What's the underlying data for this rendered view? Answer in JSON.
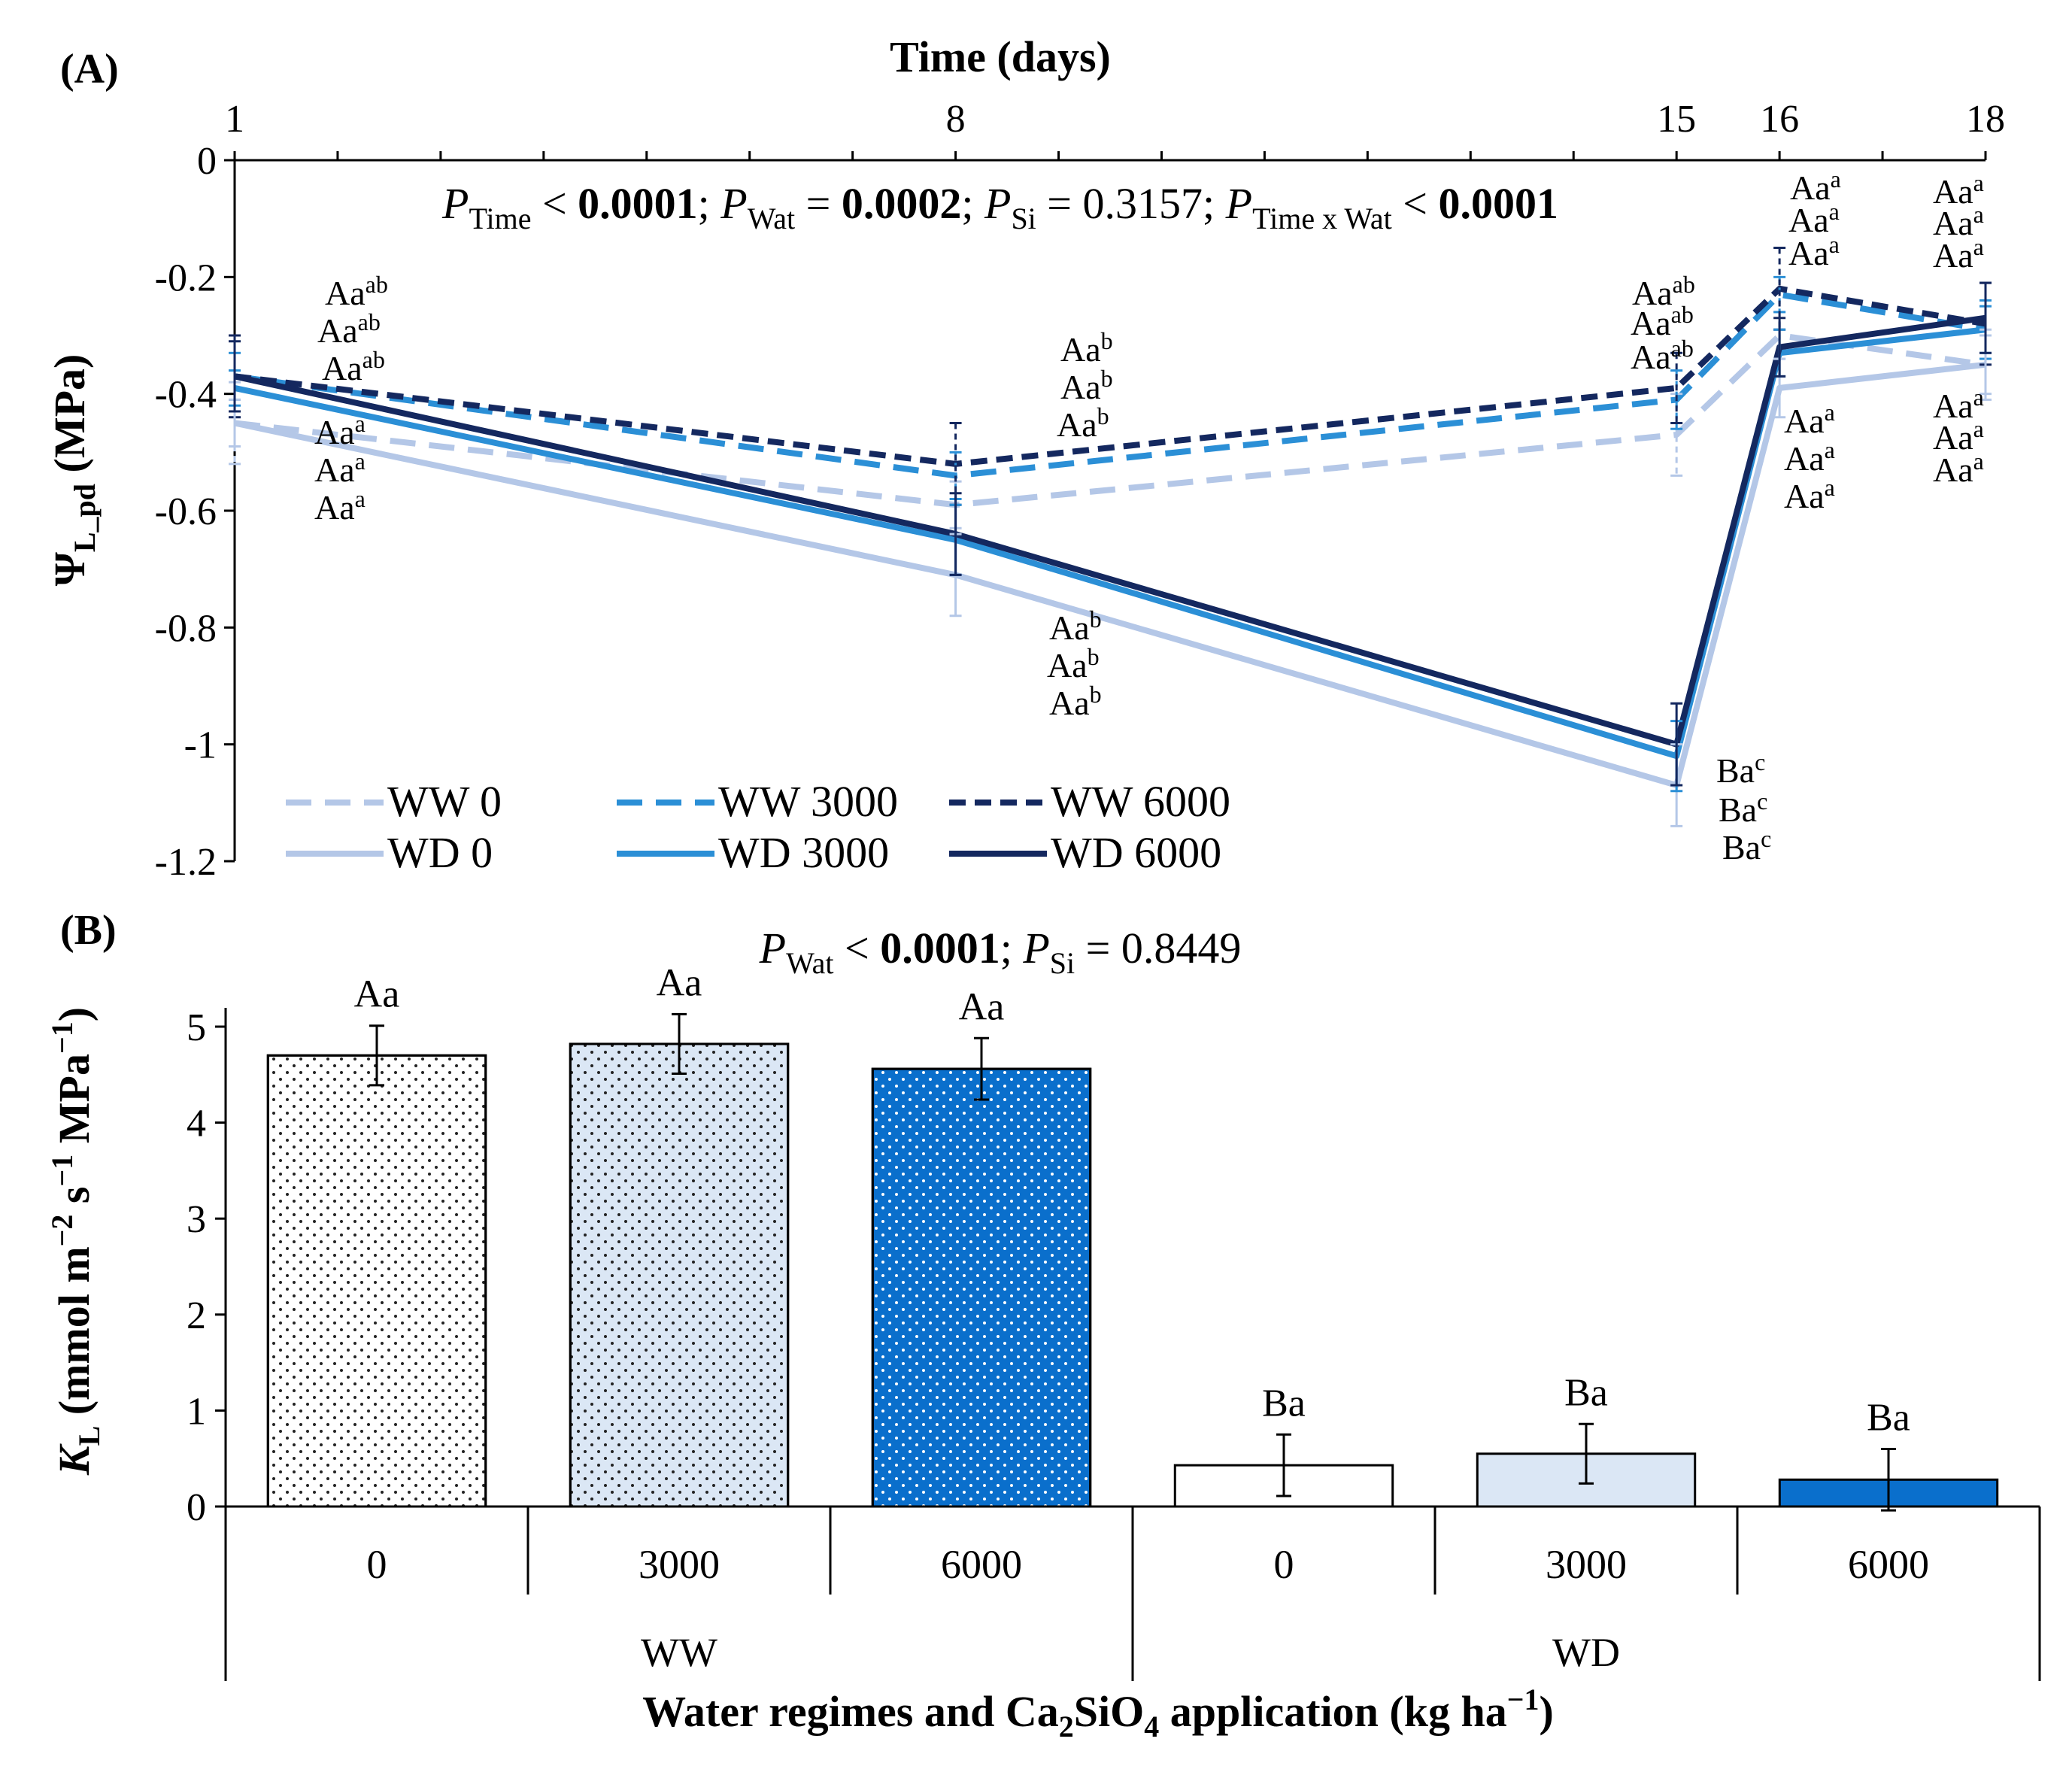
{
  "colors": {
    "ww0": "#b4c7e7",
    "ww3000": "#2b8fd6",
    "ww6000": "#14285f",
    "wd0": "#b4c7e7",
    "wd3000": "#2b8fd6",
    "wd6000": "#14285f",
    "bar_ww0": "#ffffff",
    "bar_ww3000": "#dbe7f5",
    "bar_ww6000": "#0a6fcc",
    "bar_wd0": "#ffffff",
    "bar_wd3000": "#dbe7f5",
    "bar_wd6000": "#0a6fcc"
  },
  "chart_data": [
    {
      "panel": "(A)",
      "type": "line",
      "xlabel": "Time (days)",
      "ylabel": {
        "sym": "Ψ",
        "sub": "L_pd",
        "unit": " (MPa)"
      },
      "x_ticks": [
        "1",
        "8",
        "15",
        "16",
        "18"
      ],
      "x": [
        1,
        8,
        15,
        16,
        18
      ],
      "xlim": [
        1,
        18
      ],
      "ylim": [
        -1.2,
        0
      ],
      "y_ticks": [
        "0",
        "-0.2",
        "-0.4",
        "-0.6",
        "-0.8",
        "-1",
        "-1.2"
      ],
      "stats": {
        "p1": "P",
        "p1sub": "Time",
        "p1rel": " < ",
        "p1val": "0.0001",
        "sep1": "; ",
        "p2": "P",
        "p2sub": "Wat",
        "p2rel": " = ",
        "p2val": "0.0002",
        "sep2": "; ",
        "p3": "P",
        "p3sub": "Si",
        "p3rel": " = 0.3157; ",
        "p4": "P",
        "p4sub": "Time x Wat",
        "p4rel": " < ",
        "p4val": "0.0001"
      },
      "series": [
        {
          "name": "WW 0",
          "dash": true,
          "values": [
            -0.45,
            -0.59,
            -0.47,
            -0.3,
            -0.35
          ],
          "errors": [
            0.07,
            0.04,
            0.07,
            0.04,
            0.06
          ]
        },
        {
          "name": "WW 3000",
          "dash": true,
          "values": [
            -0.37,
            -0.54,
            -0.41,
            -0.23,
            -0.29
          ],
          "errors": [
            0.04,
            0.04,
            0.05,
            0.03,
            0.05
          ]
        },
        {
          "name": "WW 6000",
          "dash": true,
          "values": [
            -0.37,
            -0.52,
            -0.39,
            -0.22,
            -0.28
          ],
          "errors": [
            0.07,
            0.07,
            0.06,
            0.07,
            0.07
          ]
        },
        {
          "name": "WD 0",
          "dash": false,
          "values": [
            -0.45,
            -0.71,
            -1.07,
            -0.39,
            -0.35
          ],
          "errors": [
            0.04,
            0.07,
            0.07,
            0.05,
            0.05
          ]
        },
        {
          "name": "WD 3000",
          "dash": false,
          "values": [
            -0.39,
            -0.65,
            -1.02,
            -0.33,
            -0.29
          ],
          "errors": [
            0.03,
            0.06,
            0.06,
            0.04,
            0.04
          ]
        },
        {
          "name": "WD 6000",
          "dash": false,
          "values": [
            -0.37,
            -0.64,
            -1.0,
            -0.32,
            -0.27
          ],
          "errors": [
            0.06,
            0.07,
            0.07,
            0.05,
            0.06
          ]
        }
      ],
      "annotations": {
        "d1_ww": [
          "Aa",
          "ab",
          "Aa",
          "ab",
          "Aa",
          "ab"
        ],
        "d1_wd": [
          "Aa",
          "a",
          "Aa",
          "a",
          "Aa",
          "a"
        ],
        "d8_ww": [
          "Aa",
          "b",
          "Aa",
          "b",
          "Aa",
          "b"
        ],
        "d8_wd": [
          "Aa",
          "b",
          "Aa",
          "b",
          "Aa",
          "b"
        ],
        "d15_ww": [
          "Aa",
          "ab",
          "Aa",
          "ab",
          "Aa",
          "ab"
        ],
        "d15_wd": [
          "Ba",
          "c",
          "Ba",
          "c",
          "Ba",
          "c"
        ],
        "d16_ww": [
          "Aa",
          "a",
          "Aa",
          "a",
          "Aa",
          "a"
        ],
        "d16_wd": [
          "Aa",
          "a",
          "Aa",
          "a",
          "Aa",
          "a"
        ],
        "d18_ww": [
          "Aa",
          "a",
          "Aa",
          "a",
          "Aa",
          "a"
        ],
        "d18_wd": [
          "Aa",
          "a",
          "Aa",
          "a",
          "Aa",
          "a"
        ]
      }
    },
    {
      "panel": "(B)",
      "type": "bar",
      "ylabel": {
        "sym": "K",
        "sub": "L",
        "unit": " (mmol m",
        "e1": "−2",
        "u2": " s",
        "e2": "−1",
        "u3": " MPa",
        "e3": "−1",
        "u4": ")"
      },
      "xlabel": {
        "a": "Water regimes and Ca",
        "s1": "2",
        "b": "SiO",
        "s2": "4",
        "c": " application (kg ha",
        "e": "−1",
        "d": ")"
      },
      "stats": {
        "p1": "P",
        "p1sub": "Wat",
        "p1rel": " < ",
        "p1val": "0.0001",
        "sep": "; ",
        "p2": "P",
        "p2sub": "Si",
        "p2rel": " = 0.8449"
      },
      "ylim": [
        0,
        5
      ],
      "y_ticks": [
        "0",
        "1",
        "2",
        "3",
        "4",
        "5"
      ],
      "categories": [
        "0",
        "3000",
        "6000",
        "0",
        "3000",
        "6000"
      ],
      "groups": [
        "WW",
        "WD"
      ],
      "values": [
        4.7,
        4.82,
        4.56,
        0.43,
        0.55,
        0.28
      ],
      "errors": [
        0.31,
        0.31,
        0.32,
        0.32,
        0.31,
        0.32
      ],
      "letters": [
        "Aa",
        "Aa",
        "Aa",
        "Ba",
        "Ba",
        "Ba"
      ]
    }
  ]
}
